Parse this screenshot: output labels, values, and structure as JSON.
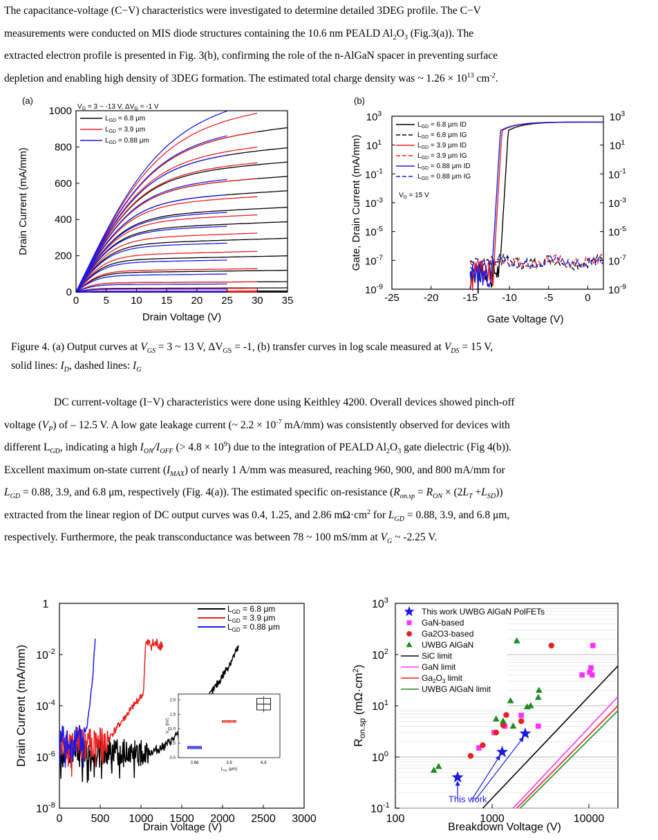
{
  "para1": [
    "The capacitance-voltage (C−V) characteristics were investigated to determine detailed 3DEG profile. The C−V",
    "measurements were conducted on MIS diode structures containing the 10.6 nm PEALD Al₂O₃ (Fig.3(a)). The",
    "extracted electron profile is presented in Fig. 3(b), confirming the role of the n-AlGaN spacer in preventing surface",
    "depletion and enabling high density of 3DEG formation. The estimated total charge density was ~ 1.26 × 10¹³ cm⁻²."
  ],
  "caption": [
    "Figure 4. (a) Output curves at VGS = 3 ~ 13 V, ΔVGS = -1, (b) transfer curves in log scale measured at VDS = 15 V,",
    "solid lines: ID, dashed lines: IG"
  ],
  "para2": [
    "DC current-voltage (I−V) characteristics were done using Keithley 4200. Overall devices showed pinch-off",
    "voltage (VP) of – 12.5 V. A low gate leakage current (~ 2.2 × 10⁻⁷ mA/mm) was consistently observed for devices with",
    "different LGD, indicating a high ION/IOFF (> 4.8 × 10⁹) due to the integration of PEALD Al₂O₃ gate dielectric (Fig 4(b)).",
    "Excellent maximum on-state current (IMAX) of nearly 1 A/mm was measured, reaching 960, 900, and 800 mA/mm for",
    "LGD = 0.88, 3.9, and 6.8 μm, respectively (Fig. 4(a)). The estimated specific on-resistance (Ron.sp = RON × (2LT +LSD))",
    "extracted from the linear region of DC output curves was 0.4, 1.25, and 2.86 mΩ·cm² for LGD = 0.88, 3.9, and 6.8 μm,",
    "respectively. Furthermore, the peak transconductance was between 78 ~ 100 mS/mm at VG ~ -2.25 V."
  ],
  "colors": {
    "black": "#000000",
    "red": "#e8201e",
    "blue": "#1a1ae6",
    "magenta": "#ff33ff",
    "green": "#1f8a1f"
  },
  "chart_data": [
    {
      "type": "line",
      "panel_label": "(a)",
      "annotation": "VG = 3 ~ -13 V, ΔVG = -1 V",
      "xlabel": "Drain Voltage (V)",
      "ylabel": "Drain Current (mA/mm)",
      "xlim": [
        0,
        35
      ],
      "ylim": [
        0,
        1000
      ],
      "xticks": [
        "0",
        "5",
        "10",
        "15",
        "20",
        "25",
        "30",
        "35"
      ],
      "yticks": [
        "0",
        "200",
        "400",
        "600",
        "800",
        "1000"
      ],
      "series": [
        {
          "name": "LGD = 6.8 μm",
          "color": "black",
          "x_end": 35,
          "saturation_currents": [
            800,
            700,
            630,
            560,
            490,
            410,
            340,
            260,
            175,
            105,
            50,
            20,
            5,
            0,
            0,
            0,
            0
          ]
        },
        {
          "name": "LGD = 3.9 μm",
          "color": "red",
          "x_end": 30,
          "saturation_currents": [
            900,
            800,
            720,
            640,
            560,
            470,
            380,
            290,
            200,
            115,
            50,
            18,
            5,
            0,
            0,
            0,
            0
          ]
        },
        {
          "name": "LGD = 0.88 μm",
          "color": "blue",
          "x_end": 25,
          "saturation_currents": [
            960,
            810,
            700,
            570,
            490,
            400,
            330,
            245,
            160,
            90,
            40,
            15,
            3,
            0,
            0,
            0,
            0
          ]
        }
      ]
    },
    {
      "type": "line",
      "panel_label": "(b)",
      "annotation": "VD = 15 V",
      "xlabel": "Gate Voltage (V)",
      "ylabel": "Gate, Drain Current (mA/mm)",
      "xlim": [
        -25,
        2
      ],
      "ylim_log10": [
        -9,
        3
      ],
      "xticks": [
        "-25",
        "-20",
        "-15",
        "-10",
        "-5",
        "0"
      ],
      "yticks": [
        "10-9",
        "10-7",
        "10-5",
        "10-3",
        "10-1",
        "101",
        "103"
      ],
      "series": [
        {
          "name": "LGD = 6.8 μm ID",
          "color": "black",
          "dashed": false,
          "vth": -11.2
        },
        {
          "name": "LGD = 6.8 μm IG",
          "color": "black",
          "dashed": true
        },
        {
          "name": "LGD = 3.9 μm ID",
          "color": "red",
          "dashed": false,
          "vth": -12.0
        },
        {
          "name": "LGD = 3.9 μm IG",
          "color": "red",
          "dashed": true
        },
        {
          "name": "LGD = 0.88 μm ID",
          "color": "blue",
          "dashed": false,
          "vth": -12.2
        },
        {
          "name": "LGD = 0.88 μm IG",
          "color": "blue",
          "dashed": true
        }
      ]
    },
    {
      "type": "line",
      "xlabel": "Drain Voltage (V)",
      "ylabel": "Drain Current (mA/mm)",
      "xlim": [
        0,
        3000
      ],
      "ylim_log10": [
        -8,
        0
      ],
      "xticks": [
        "0",
        "500",
        "1000",
        "1500",
        "2000",
        "2500",
        "3000"
      ],
      "yticks": [
        "10-8",
        "10-6",
        "10-4",
        "10-2",
        "1"
      ],
      "series": [
        {
          "name": "LGD = 6.8 μm",
          "color": "black",
          "breakdown_V": 2200
        },
        {
          "name": "LGD = 3.9 μm",
          "color": "red",
          "breakdown_V": 1270
        },
        {
          "name": "LGD = 0.88 μm",
          "color": "blue",
          "breakdown_V": 440
        }
      ],
      "inset": {
        "type": "box",
        "xlabel": "LGD (μm)",
        "ylabel": "VBR (kV)",
        "categories": [
          "0.88",
          "3.9",
          "6.8"
        ],
        "medians": [
          0.35,
          1.25,
          1.85
        ],
        "ylim": [
          0,
          2.2
        ],
        "yticks": [
          "0.0",
          "0.5",
          "1.0",
          "1.5",
          "2.0"
        ]
      }
    },
    {
      "type": "scatter",
      "xlabel": "Breakdown Voltage (V)",
      "ylabel": "Ron.sp (mΩ·cm²)",
      "xlim_log10": [
        2,
        4.3
      ],
      "ylim_log10": [
        -1,
        3
      ],
      "xticks": [
        "100",
        "1000",
        "10000"
      ],
      "yticks": [
        "10-1",
        "100",
        "101",
        "102",
        "103"
      ],
      "annotation": "This work",
      "series": [
        {
          "name": "This work UWBG AlGaN PolFETs",
          "marker": "star",
          "color": "blue",
          "points": [
            [
              440,
              0.4
            ],
            [
              1270,
              1.25
            ],
            [
              2200,
              2.86
            ]
          ]
        },
        {
          "name": "GaN-based",
          "marker": "square",
          "color": "magenta",
          "points": [
            [
              730,
              1.5
            ],
            [
              1050,
              3.0
            ],
            [
              1350,
              4.0
            ],
            [
              2000,
              6.5
            ],
            [
              3000,
              4.0
            ],
            [
              8500,
              40
            ],
            [
              10200,
              45
            ],
            [
              10500,
              55
            ],
            [
              10800,
              40
            ],
            [
              11000,
              150
            ]
          ]
        },
        {
          "name": "Ga2O3-based",
          "marker": "circle",
          "color": "red",
          "points": [
            [
              600,
              1.05
            ],
            [
              800,
              1.7
            ],
            [
              1100,
              3.0
            ],
            [
              1300,
              4.2
            ],
            [
              1400,
              6.6
            ],
            [
              2000,
              5.0
            ],
            [
              4100,
              150
            ]
          ]
        },
        {
          "name": "UWBG AlGaN",
          "marker": "triangle",
          "color": "green",
          "points": [
            [
              250,
              0.55
            ],
            [
              280,
              0.65
            ],
            [
              1100,
              5.5
            ],
            [
              1300,
              5.0
            ],
            [
              1550,
              12.5
            ],
            [
              1800,
              185
            ],
            [
              2300,
              9.5
            ],
            [
              2500,
              10
            ],
            [
              3000,
              14.5
            ],
            [
              3050,
              20
            ],
            [
              1650,
              4.0
            ]
          ]
        },
        {
          "name": "SiC limit",
          "line": true,
          "color": "black"
        },
        {
          "name": "GaN limit",
          "line": true,
          "color": "magenta"
        },
        {
          "name": "Ga2O3 limit",
          "line": true,
          "color": "red"
        },
        {
          "name": "UWBG AlGaN limit",
          "line": true,
          "color": "green"
        }
      ]
    }
  ]
}
